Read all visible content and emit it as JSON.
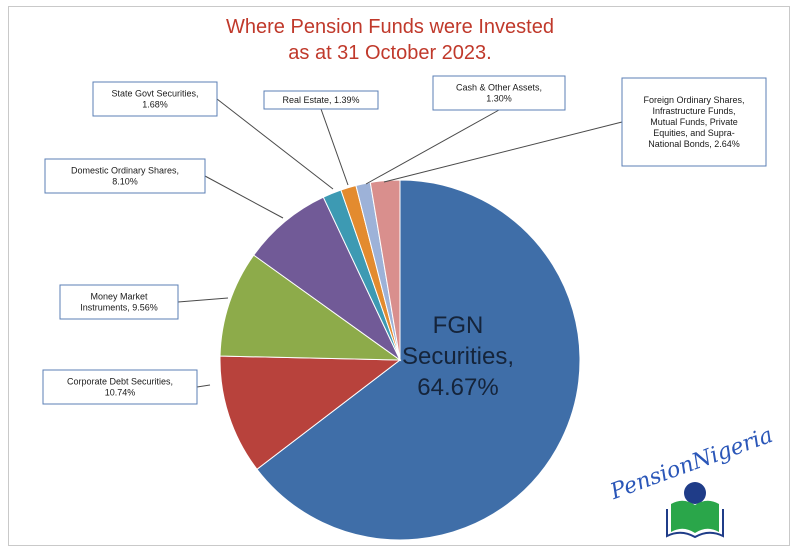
{
  "chart_data": {
    "type": "pie",
    "title_lines": [
      "Where Pension Funds were Invested",
      "as at 31 October 2023."
    ],
    "slices": [
      {
        "label": "FGN Securities",
        "value": 64.67,
        "value_text": "64.67%",
        "color": "#3f6ea8",
        "label_lines": [
          "FGN",
          "Securities,",
          "64.67%"
        ]
      },
      {
        "label": "Corporate Debt Securities",
        "value": 10.74,
        "value_text": "10.74%",
        "color": "#b8423c",
        "label_lines": [
          "Corporate Debt Securities,",
          "10.74%"
        ]
      },
      {
        "label": "Money Market Instruments",
        "value": 9.56,
        "value_text": "9.56%",
        "color": "#8dab4a",
        "label_lines": [
          "Money Market",
          "Instruments, 9.56%"
        ]
      },
      {
        "label": "Domestic Ordinary Shares",
        "value": 8.1,
        "value_text": "8.10%",
        "color": "#715a97",
        "label_lines": [
          "Domestic Ordinary Shares,",
          "8.10%"
        ]
      },
      {
        "label": "State Govt Securities",
        "value": 1.68,
        "value_text": "1.68%",
        "color": "#3d9ab3",
        "label_lines": [
          "State Govt Securities,",
          "1.68%"
        ]
      },
      {
        "label": "Real Estate",
        "value": 1.39,
        "value_text": "1.39%",
        "color": "#e38b2f",
        "label_lines": [
          "Real Estate, 1.39%"
        ]
      },
      {
        "label": "Cash & Other Assets",
        "value": 1.3,
        "value_text": "1.30%",
        "color": "#9db2d8",
        "label_lines": [
          "Cash & Other Assets,",
          "1.30%"
        ]
      },
      {
        "label": "Foreign Ordinary Shares, Infrastructure Funds, Mutual Funds, Private Equities, and Supra-National Bonds",
        "value": 2.64,
        "value_text": "2.64%",
        "color": "#d98f8d",
        "label_lines": [
          "Foreign Ordinary Shares,",
          "Infrastructure Funds,",
          "Mutual Funds, Private",
          "Equities, and Supra-",
          "National Bonds, 2.64%"
        ]
      }
    ]
  },
  "logo": {
    "text": "PensionNigeria"
  },
  "colors": {
    "title": "#c0392b",
    "border": "#c9c9c9",
    "logo_blue": "#2a56b8",
    "logo_green": "#2aa64a"
  }
}
